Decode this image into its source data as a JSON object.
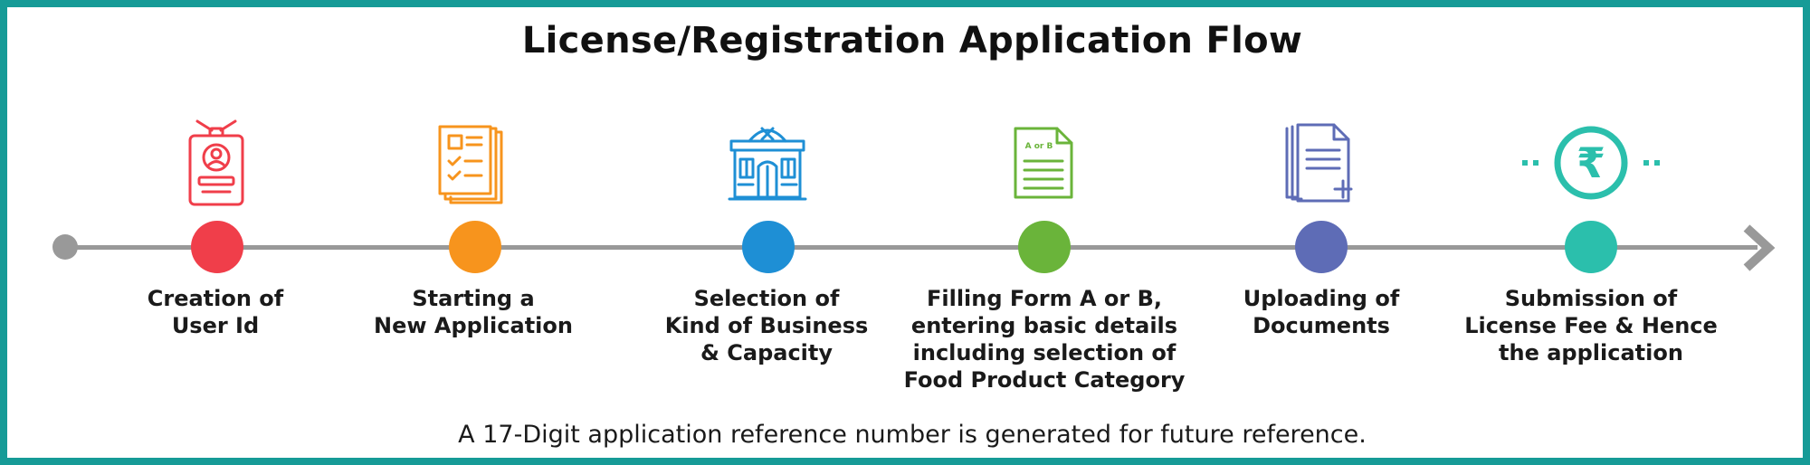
{
  "title": "License/Registration Application Flow",
  "steps": [
    {
      "label_lines": [
        "Creation of",
        "User Id"
      ],
      "color": "#f03e4a",
      "icon": "id-card-icon"
    },
    {
      "label_lines": [
        "Starting a",
        "New Application"
      ],
      "color": "#f7941d",
      "icon": "application-form-icon"
    },
    {
      "label_lines": [
        "Selection of",
        "Kind of Business",
        "& Capacity"
      ],
      "color": "#1e8fd5",
      "icon": "business-building-icon"
    },
    {
      "label_lines": [
        "Filling Form A or B,",
        "entering basic details",
        "including selection of",
        "Food Product Category"
      ],
      "color": "#6ab43a",
      "icon_text": "A or B",
      "icon": "form-document-icon"
    },
    {
      "label_lines": [
        "Uploading of",
        "Documents"
      ],
      "color": "#5e6cb6",
      "icon": "upload-documents-icon"
    },
    {
      "label_lines": [
        "Submission of",
        "License Fee & Hence",
        "the application"
      ],
      "color": "#2bbfac",
      "icon_text": "₹",
      "icon": "rupee-fee-icon"
    }
  ],
  "footer_note": "A 17-Digit application reference number is generated for future reference.",
  "colors": {
    "border": "#169b97",
    "timeline": "#999999"
  }
}
